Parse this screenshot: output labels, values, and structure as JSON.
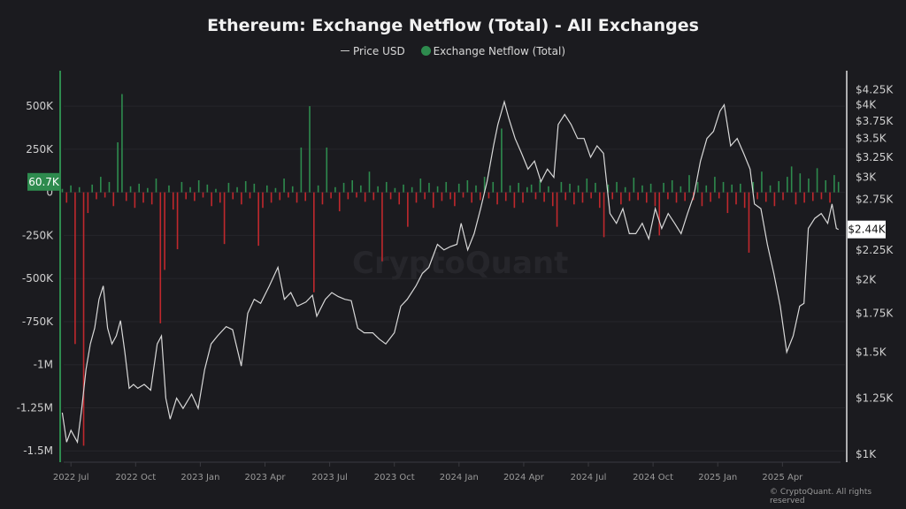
{
  "chart_data": {
    "type": "bar+line",
    "title": "Ethereum: Exchange Netflow (Total) - All Exchanges",
    "legend": [
      {
        "label": "Price USD",
        "color": "#d0d0d0"
      },
      {
        "label": "Exchange Netflow (Total)",
        "color": "#2e8b4e"
      }
    ],
    "legend_placement": "top-center",
    "left_axis": {
      "ticks": [
        500,
        250,
        0,
        -250,
        -500,
        -750,
        -1000,
        -1250,
        -1500
      ],
      "tick_labels": [
        "500K",
        "250K",
        "0",
        "-250K",
        "-500K",
        "-750K",
        "-1M",
        "-1.25M",
        "-1.5M"
      ],
      "ylim": [
        -1550,
        680
      ],
      "unit": "K"
    },
    "right_axis": {
      "scale": "log",
      "ticks": [
        1000,
        1250,
        1500,
        1750,
        2000,
        2250,
        2750,
        3000,
        3250,
        3500,
        3750,
        4000,
        4250
      ],
      "tick_labels": [
        "$1K",
        "$1.25K",
        "$1.5K",
        "$1.75K",
        "$2K",
        "$2.25K",
        "$2.75K",
        "$3K",
        "$3.25K",
        "$3.5K",
        "$3.75K",
        "$4K",
        "$4.25K"
      ],
      "ylim": [
        980,
        4500
      ]
    },
    "x_axis": {
      "tick_labels": [
        "2022 Jul",
        "2022 Oct",
        "2023 Jan",
        "2023 Apr",
        "2023 Jul",
        "2023 Oct",
        "2024 Jan",
        "2024 Apr",
        "2024 Jul",
        "2024 Oct",
        "2025 Jan",
        "2025 Apr"
      ],
      "tick_months": [
        0,
        3,
        6,
        9,
        12,
        15,
        18,
        21,
        24,
        27,
        30,
        33
      ],
      "range_months": [
        -0.5,
        35.9
      ],
      "unit": "months since 2022 Jul"
    },
    "current_netflow_label": "60.7K",
    "current_price_label": "$2.44K",
    "netflow": {
      "start_month": -0.4,
      "end_month": 35.6,
      "values": [
        20,
        -60,
        40,
        -880,
        30,
        -1470,
        -120,
        45,
        -40,
        90,
        -30,
        60,
        -80,
        290,
        570,
        -50,
        35,
        -90,
        50,
        -60,
        25,
        -70,
        80,
        -760,
        -450,
        40,
        -100,
        -330,
        60,
        -40,
        30,
        -50,
        70,
        -30,
        45,
        -80,
        20,
        -60,
        -300,
        55,
        -40,
        30,
        -70,
        65,
        -35,
        50,
        -310,
        -90,
        40,
        -60,
        25,
        -45,
        80,
        -30,
        35,
        -60,
        260,
        -50,
        500,
        -580,
        40,
        -70,
        260,
        -35,
        30,
        -110,
        55,
        -40,
        70,
        -30,
        40,
        -55,
        120,
        -45,
        35,
        -400,
        60,
        -40,
        25,
        -70,
        45,
        -200,
        30,
        -60,
        80,
        -40,
        55,
        -90,
        35,
        -50,
        60,
        -40,
        -80,
        50,
        -30,
        70,
        -60,
        40,
        -45,
        90,
        -35,
        60,
        -70,
        370,
        -50,
        40,
        -90,
        55,
        -60,
        30,
        45,
        -40,
        70,
        -55,
        35,
        -80,
        -200,
        60,
        -45,
        50,
        -70,
        40,
        -60,
        80,
        -35,
        55,
        -90,
        -260,
        45,
        -40,
        60,
        -70,
        30,
        -50,
        85,
        -45,
        40,
        -60,
        50,
        -80,
        -250,
        55,
        -40,
        70,
        -60,
        35,
        -50,
        100,
        -45,
        60,
        -80,
        40,
        -55,
        90,
        -35,
        60,
        -120,
        45,
        -70,
        50,
        -90,
        -350,
        60,
        -40,
        120,
        -55,
        40,
        -80,
        65,
        -45,
        90,
        150,
        -70,
        110,
        -60,
        80,
        -50,
        140,
        -40,
        70,
        -60,
        100,
        60.7
      ]
    },
    "price": [
      [
        -0.4,
        1180
      ],
      [
        -0.2,
        1050
      ],
      [
        0,
        1100
      ],
      [
        0.3,
        1050
      ],
      [
        0.5,
        1200
      ],
      [
        0.7,
        1400
      ],
      [
        0.9,
        1550
      ],
      [
        1.1,
        1650
      ],
      [
        1.3,
        1850
      ],
      [
        1.5,
        1950
      ],
      [
        1.7,
        1650
      ],
      [
        1.9,
        1550
      ],
      [
        2.1,
        1600
      ],
      [
        2.3,
        1700
      ],
      [
        2.5,
        1500
      ],
      [
        2.7,
        1300
      ],
      [
        2.9,
        1320
      ],
      [
        3.1,
        1300
      ],
      [
        3.4,
        1320
      ],
      [
        3.7,
        1290
      ],
      [
        4.0,
        1550
      ],
      [
        4.2,
        1600
      ],
      [
        4.4,
        1250
      ],
      [
        4.6,
        1150
      ],
      [
        4.9,
        1250
      ],
      [
        5.2,
        1200
      ],
      [
        5.6,
        1270
      ],
      [
        5.9,
        1200
      ],
      [
        6.2,
        1400
      ],
      [
        6.5,
        1550
      ],
      [
        6.8,
        1600
      ],
      [
        7.2,
        1660
      ],
      [
        7.5,
        1640
      ],
      [
        7.9,
        1420
      ],
      [
        8.2,
        1750
      ],
      [
        8.5,
        1850
      ],
      [
        8.8,
        1820
      ],
      [
        9.2,
        1950
      ],
      [
        9.6,
        2100
      ],
      [
        9.9,
        1850
      ],
      [
        10.2,
        1900
      ],
      [
        10.5,
        1800
      ],
      [
        10.9,
        1830
      ],
      [
        11.2,
        1880
      ],
      [
        11.4,
        1730
      ],
      [
        11.8,
        1850
      ],
      [
        12.1,
        1900
      ],
      [
        12.4,
        1870
      ],
      [
        12.7,
        1850
      ],
      [
        13.0,
        1840
      ],
      [
        13.3,
        1650
      ],
      [
        13.6,
        1620
      ],
      [
        14.0,
        1620
      ],
      [
        14.3,
        1580
      ],
      [
        14.6,
        1550
      ],
      [
        15.0,
        1620
      ],
      [
        15.3,
        1800
      ],
      [
        15.6,
        1850
      ],
      [
        16.0,
        1950
      ],
      [
        16.3,
        2050
      ],
      [
        16.6,
        2100
      ],
      [
        17.0,
        2300
      ],
      [
        17.3,
        2250
      ],
      [
        17.6,
        2280
      ],
      [
        17.9,
        2300
      ],
      [
        18.1,
        2500
      ],
      [
        18.4,
        2250
      ],
      [
        18.7,
        2400
      ],
      [
        19.0,
        2650
      ],
      [
        19.3,
        2950
      ],
      [
        19.6,
        3400
      ],
      [
        19.8,
        3700
      ],
      [
        20.1,
        4050
      ],
      [
        20.3,
        3800
      ],
      [
        20.6,
        3500
      ],
      [
        20.9,
        3300
      ],
      [
        21.2,
        3100
      ],
      [
        21.5,
        3200
      ],
      [
        21.8,
        2950
      ],
      [
        22.1,
        3100
      ],
      [
        22.4,
        3000
      ],
      [
        22.6,
        3700
      ],
      [
        22.9,
        3850
      ],
      [
        23.2,
        3700
      ],
      [
        23.5,
        3500
      ],
      [
        23.8,
        3500
      ],
      [
        24.1,
        3250
      ],
      [
        24.4,
        3400
      ],
      [
        24.7,
        3300
      ],
      [
        25.0,
        2600
      ],
      [
        25.3,
        2500
      ],
      [
        25.6,
        2650
      ],
      [
        25.9,
        2400
      ],
      [
        26.2,
        2400
      ],
      [
        26.5,
        2500
      ],
      [
        26.8,
        2350
      ],
      [
        27.1,
        2650
      ],
      [
        27.4,
        2450
      ],
      [
        27.7,
        2600
      ],
      [
        28.0,
        2500
      ],
      [
        28.3,
        2400
      ],
      [
        28.6,
        2600
      ],
      [
        28.9,
        2800
      ],
      [
        29.2,
        3200
      ],
      [
        29.5,
        3500
      ],
      [
        29.8,
        3600
      ],
      [
        30.1,
        3900
      ],
      [
        30.3,
        4000
      ],
      [
        30.6,
        3400
      ],
      [
        30.9,
        3500
      ],
      [
        31.2,
        3300
      ],
      [
        31.5,
        3100
      ],
      [
        31.7,
        2700
      ],
      [
        32.0,
        2650
      ],
      [
        32.3,
        2300
      ],
      [
        32.6,
        2050
      ],
      [
        32.9,
        1800
      ],
      [
        33.2,
        1500
      ],
      [
        33.5,
        1600
      ],
      [
        33.8,
        1800
      ],
      [
        34.0,
        1820
      ],
      [
        34.2,
        2450
      ],
      [
        34.5,
        2550
      ],
      [
        34.8,
        2600
      ],
      [
        35.1,
        2500
      ],
      [
        35.3,
        2700
      ],
      [
        35.5,
        2450
      ],
      [
        35.6,
        2440
      ]
    ],
    "colors": {
      "positive": "#2e8b4e",
      "negative": "#c0282d",
      "price": "#d8d8d8",
      "background": "#1b1b1f",
      "grid": "#26262b"
    }
  },
  "watermark": "CryptoQuant",
  "copyright": "© CryptoQuant. All rights reserved"
}
